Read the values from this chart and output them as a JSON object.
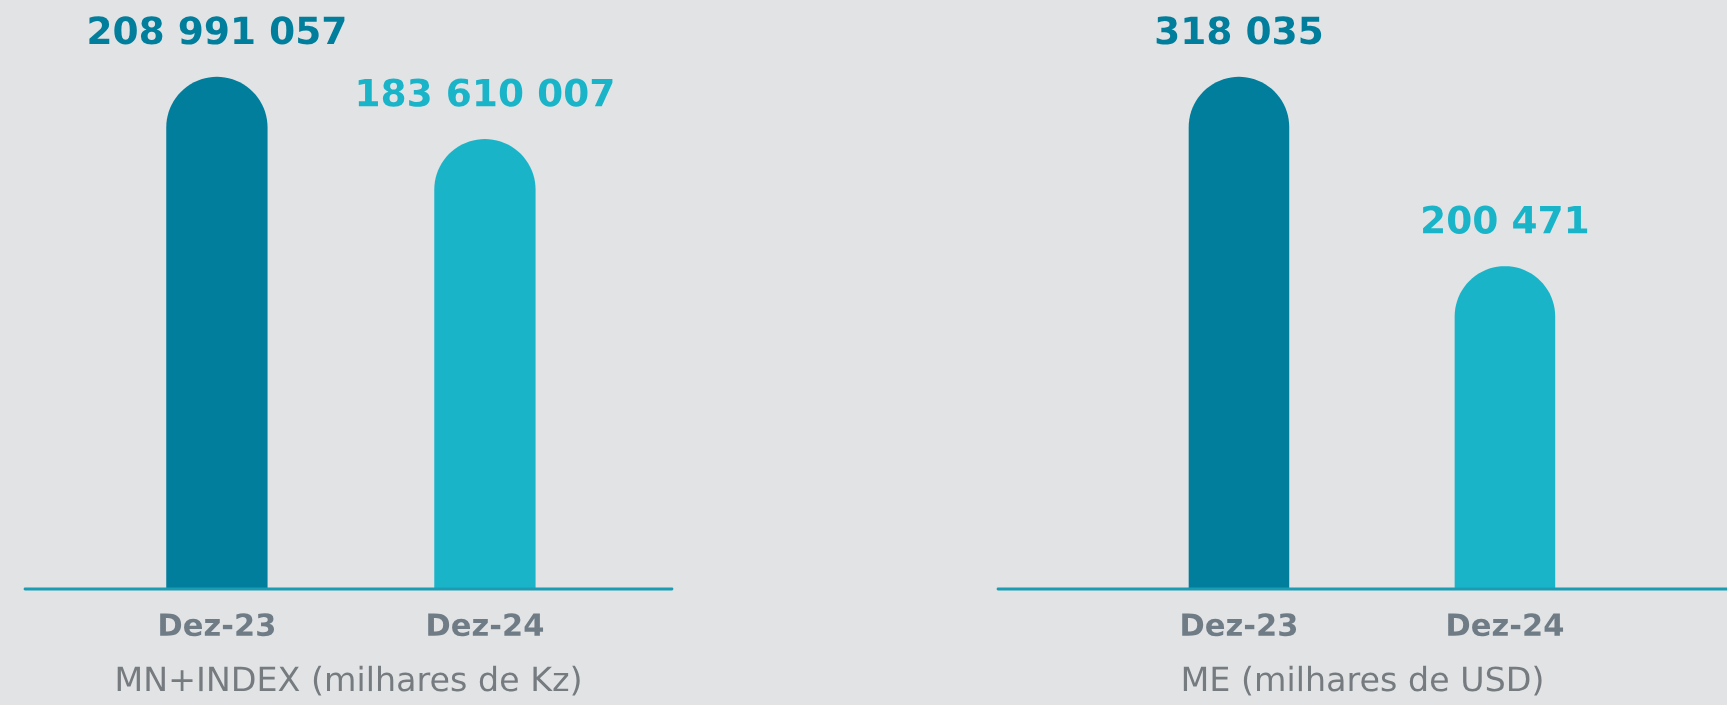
{
  "chart_data": [
    {
      "type": "bar",
      "categories": [
        "Dez-23",
        "Dez-24"
      ],
      "values": [
        208991057,
        183610007
      ],
      "colors": [
        "#007e9c",
        "#1ab4c9"
      ],
      "value_labels": [
        "208 991 057",
        "183 610 007"
      ],
      "xlabel": "MN+INDEX (milhares de Kz)",
      "tick_labels": "x"
    },
    {
      "type": "bar",
      "categories": [
        "Dez-23",
        "Dez-24"
      ],
      "values": [
        318035,
        200471
      ],
      "colors": [
        "#007e9c",
        "#1ab4c9"
      ],
      "value_labels": [
        "318 035",
        "200 471"
      ],
      "xlabel": "ME (milhares de USD)",
      "tick_labels": "x"
    }
  ]
}
